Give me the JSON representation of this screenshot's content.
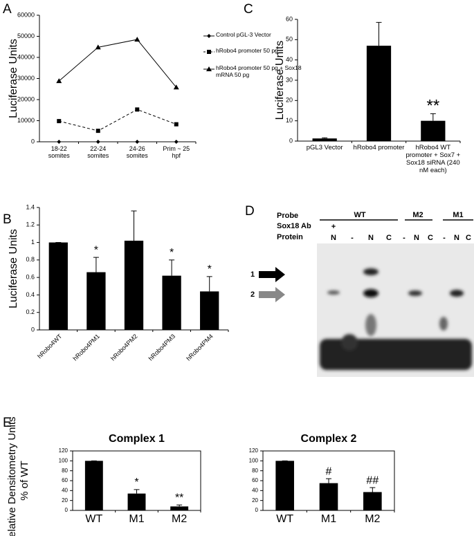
{
  "panel_labels": [
    "A",
    "B",
    "C",
    "D",
    "E"
  ],
  "chart_data": [
    {
      "type": "line",
      "ylabel": "Luciferase Units",
      "categories": [
        "18-22 somites",
        "22-24 somites",
        "24-26 somites",
        "Prim ~ 25 hpf"
      ],
      "ylim": [
        0,
        60000
      ],
      "yticks": [
        0,
        10000,
        20000,
        30000,
        40000,
        50000,
        60000
      ],
      "series": [
        {
          "name": "Control pGL-3 Vector",
          "color": "#000000",
          "marker": "diamond",
          "linestyle": "solid",
          "values": [
            0,
            0,
            0,
            0
          ]
        },
        {
          "name": "hRobo4 promoter 50 pg",
          "color": "#000000",
          "marker": "square",
          "linestyle": "dashed",
          "values": [
            9800,
            5200,
            15300,
            8300
          ]
        },
        {
          "name": "hRobo4 promoter 50 pg + Sox18 mRNA 50 pg",
          "color": "#000000",
          "marker": "triangle",
          "linestyle": "solid",
          "values": [
            28800,
            44800,
            48500,
            25800
          ]
        }
      ]
    },
    {
      "type": "bar",
      "ylabel": "Luciferase Units",
      "color": "#000000",
      "categories": [
        "hRobo4WT",
        "hRobo4PM1",
        "hRobo4PM2",
        "hRobo4PM3",
        "hRobo4PM4"
      ],
      "values": [
        1,
        0.66,
        1.02,
        0.62,
        0.44
      ],
      "errors": [
        0,
        0.17,
        0.34,
        0.18,
        0.17
      ],
      "annotations": [
        null,
        "*",
        null,
        "*",
        "*"
      ],
      "ylim": [
        0,
        1.4
      ],
      "yticks": [
        0,
        0.2,
        0.4,
        0.6,
        0.8,
        1,
        1.2,
        1.4
      ]
    },
    {
      "type": "bar",
      "ylabel": "Luciferase Units",
      "color": "#000000",
      "categories": [
        "pGL3 Vector",
        "hRobo4 promoter",
        "hRobo4 WT promoter + Sox7 + Sox18 siRNA (240 nM each)"
      ],
      "values": [
        1.3,
        47,
        10
      ],
      "errors": [
        0.3,
        11.5,
        3.5
      ],
      "annotations": [
        null,
        null,
        "**"
      ],
      "ylim": [
        0,
        60
      ],
      "yticks": [
        0,
        10,
        20,
        30,
        40,
        50,
        60
      ]
    },
    {
      "type": "bar",
      "title": "Complex 1",
      "ylabel": [
        "Relative Densitometry Units",
        "% of WT"
      ],
      "color": "#000000",
      "categories": [
        "WT",
        "M1",
        "M2"
      ],
      "values": [
        100,
        34,
        8
      ],
      "errors": [
        0,
        8,
        3
      ],
      "annotations": [
        null,
        "*",
        "**"
      ],
      "ylim": [
        0,
        120
      ],
      "yticks": [
        0,
        20,
        40,
        60,
        80,
        100,
        120
      ]
    },
    {
      "type": "bar",
      "title": "Complex 2",
      "color": "#000000",
      "categories": [
        "WT",
        "M1",
        "M2"
      ],
      "values": [
        100,
        55,
        37
      ],
      "errors": [
        0,
        9,
        9
      ],
      "annotations": [
        null,
        "#",
        "##"
      ],
      "ylim": [
        0,
        120
      ],
      "yticks": [
        0,
        20,
        40,
        60,
        80,
        100,
        120
      ]
    }
  ],
  "gel": {
    "row_labels": [
      "Probe",
      "Sox18 Ab",
      "Protein"
    ],
    "probes": [
      "WT",
      "M2",
      "M1"
    ],
    "antibody": "+",
    "lanes": [
      "N",
      "-",
      "N",
      "C",
      "-",
      "N",
      "C",
      "-",
      "N",
      "C"
    ],
    "complexes": [
      "1",
      "2"
    ]
  }
}
